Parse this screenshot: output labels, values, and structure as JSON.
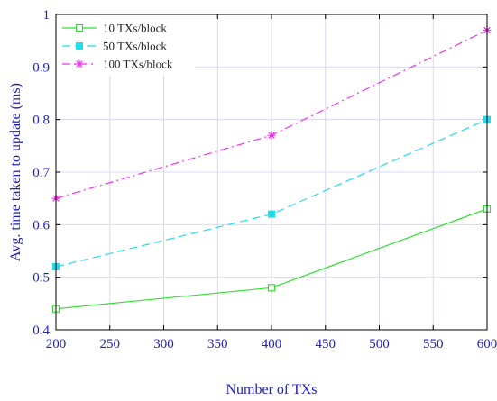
{
  "chart_data": {
    "type": "line",
    "xlabel": "Number of TXs",
    "ylabel": "Avg. time taken to update (ms)",
    "xlim": [
      200,
      600
    ],
    "ylim": [
      0.4,
      1
    ],
    "x_ticks": [
      "200",
      "250",
      "300",
      "350",
      "400",
      "450",
      "500",
      "550",
      "600"
    ],
    "y_ticks": [
      "0.4",
      "0.5",
      "0.6",
      "0.7",
      "0.8",
      "0.9",
      "1"
    ],
    "grid": true,
    "legend_position": "top-left",
    "x": [
      200,
      400,
      600
    ],
    "series": [
      {
        "name": "10 TXs/block",
        "values": [
          0.44,
          0.48,
          0.63
        ],
        "color": "#33dd33",
        "dash": "solid",
        "marker": "square-open"
      },
      {
        "name": "50 TXs/block",
        "values": [
          0.52,
          0.62,
          0.8
        ],
        "color": "#22ddee",
        "dash": "dashed",
        "marker": "square-filled"
      },
      {
        "name": "100 TXs/block",
        "values": [
          0.65,
          0.77,
          0.97
        ],
        "color": "#ee33ee",
        "dash": "dashdot",
        "marker": "asterisk"
      }
    ]
  }
}
